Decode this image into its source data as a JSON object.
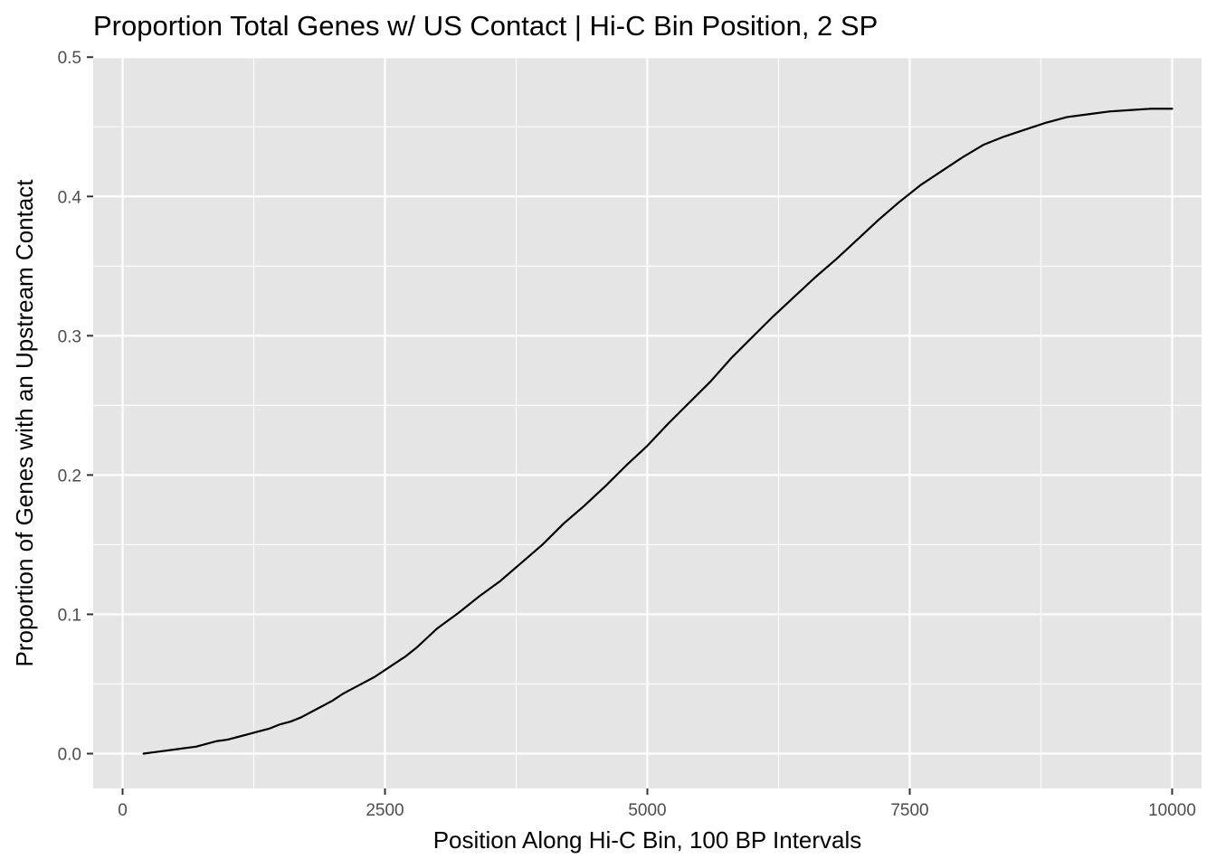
{
  "chart_data": {
    "type": "line",
    "title": "Proportion Total Genes w/ US Contact | Hi-C Bin Position, 2 SP",
    "xlabel": "Position Along Hi-C Bin, 100 BP Intervals",
    "ylabel": "Proportion of Genes with an Upstream Contact",
    "xlim": [
      -280,
      10280
    ],
    "ylim": [
      -0.025,
      0.4995
    ],
    "x_ticks": [
      0,
      2500,
      5000,
      7500,
      10000
    ],
    "x_tick_labels": [
      "0",
      "2500",
      "5000",
      "7500",
      "10000"
    ],
    "y_ticks": [
      0.0,
      0.1,
      0.2,
      0.3,
      0.4,
      0.5
    ],
    "y_tick_labels": [
      "0.0",
      "0.1",
      "0.2",
      "0.3",
      "0.4",
      "0.5"
    ],
    "grid": true,
    "legend": "none",
    "colors": {
      "panel": "#e5e5e5",
      "grid": "#ffffff",
      "line": "#000000",
      "tick_text": "#4d4d4d",
      "tick": "#333333"
    },
    "series": [
      {
        "x": [
          200,
          300,
          400,
          500,
          600,
          700,
          800,
          900,
          1000,
          1100,
          1200,
          1300,
          1400,
          1500,
          1600,
          1700,
          1800,
          1900,
          2000,
          2100,
          2200,
          2300,
          2400,
          2500,
          2600,
          2700,
          2800,
          2900,
          3000,
          3200,
          3400,
          3600,
          3800,
          4000,
          4200,
          4400,
          4500,
          4600,
          4800,
          5000,
          5200,
          5400,
          5600,
          5800,
          6000,
          6200,
          6400,
          6600,
          6800,
          7000,
          7200,
          7400,
          7600,
          7800,
          8000,
          8200,
          8400,
          8600,
          8800,
          9000,
          9200,
          9400,
          9600,
          9800,
          10000
        ],
        "y": [
          0.0,
          0.001,
          0.002,
          0.003,
          0.004,
          0.005,
          0.007,
          0.009,
          0.01,
          0.012,
          0.014,
          0.016,
          0.018,
          0.021,
          0.023,
          0.026,
          0.03,
          0.034,
          0.038,
          0.043,
          0.047,
          0.051,
          0.055,
          0.06,
          0.065,
          0.07,
          0.076,
          0.083,
          0.09,
          0.101,
          0.113,
          0.124,
          0.137,
          0.15,
          0.165,
          0.178,
          0.185,
          0.192,
          0.207,
          0.221,
          0.237,
          0.252,
          0.267,
          0.284,
          0.299,
          0.314,
          0.328,
          0.342,
          0.355,
          0.369,
          0.383,
          0.396,
          0.408,
          0.418,
          0.428,
          0.437,
          0.443,
          0.448,
          0.453,
          0.457,
          0.459,
          0.461,
          0.462,
          0.463,
          0.463
        ]
      }
    ]
  }
}
